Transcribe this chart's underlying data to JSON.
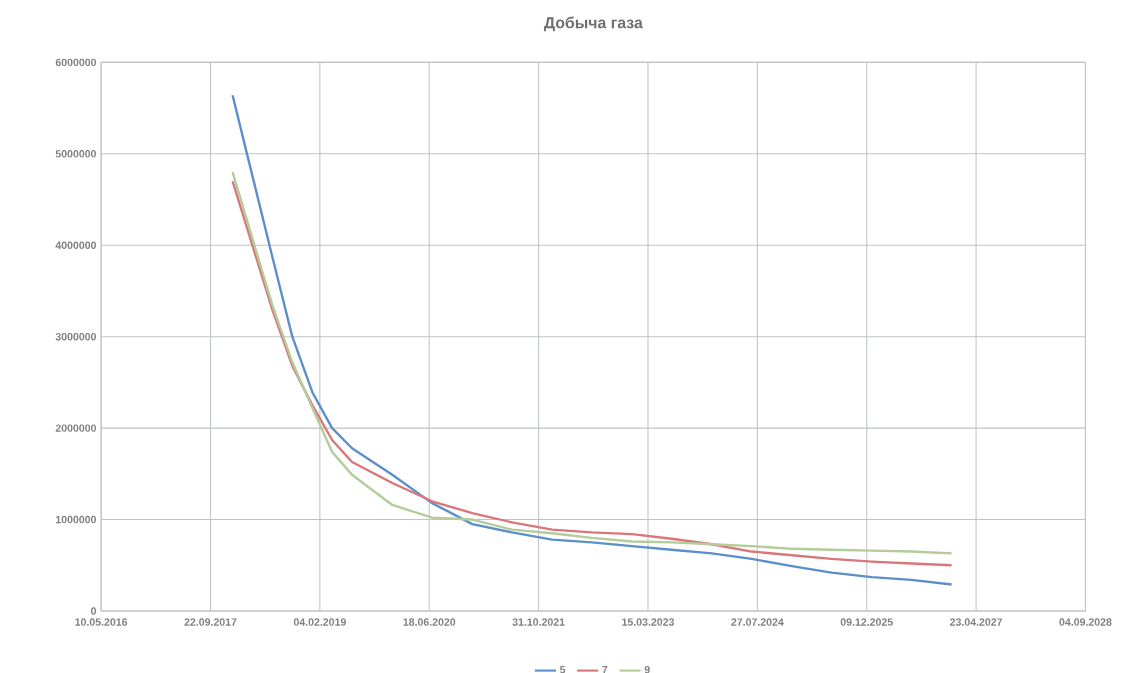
{
  "chart_data": {
    "type": "line",
    "title": "Добыча газа",
    "x": [
      "2018-01-01",
      "2018-07-01",
      "2018-10-01",
      "2019-01-01",
      "2019-04-01",
      "2019-07-01",
      "2020-01-01",
      "2020-07-01",
      "2021-01-01",
      "2021-07-01",
      "2022-01-01",
      "2022-07-01",
      "2023-01-01",
      "2023-07-01",
      "2024-01-01",
      "2024-07-01",
      "2025-01-01",
      "2025-07-01",
      "2026-01-01",
      "2026-07-01",
      "2027-01-01"
    ],
    "series": [
      {
        "name": "5",
        "color": "#5b8fc9",
        "values": [
          5640000,
          3880000,
          3000000,
          2390000,
          2000000,
          1780000,
          1490000,
          1180000,
          950000,
          860000,
          780000,
          750000,
          710000,
          670000,
          630000,
          570000,
          490000,
          420000,
          370000,
          340000,
          290000
        ]
      },
      {
        "name": "7",
        "color": "#d9767a",
        "values": [
          4700000,
          3300000,
          2680000,
          2250000,
          1870000,
          1630000,
          1400000,
          1200000,
          1070000,
          970000,
          890000,
          860000,
          840000,
          790000,
          730000,
          650000,
          610000,
          570000,
          540000,
          520000,
          500000
        ]
      },
      {
        "name": "9",
        "color": "#b3cc99",
        "values": [
          4800000,
          3350000,
          2720000,
          2220000,
          1740000,
          1490000,
          1160000,
          1020000,
          1000000,
          890000,
          850000,
          800000,
          760000,
          750000,
          730000,
          710000,
          680000,
          670000,
          660000,
          650000,
          630000
        ]
      }
    ],
    "xlim": [
      "2016-05-10",
      "2028-09-04"
    ],
    "xticks": [
      {
        "value": "2016-05-10",
        "label": "10.05.2016"
      },
      {
        "value": "2017-09-22",
        "label": "22.09.2017"
      },
      {
        "value": "2019-02-04",
        "label": "04.02.2019"
      },
      {
        "value": "2020-06-18",
        "label": "18.06.2020"
      },
      {
        "value": "2021-10-31",
        "label": "31.10.2021"
      },
      {
        "value": "2023-03-15",
        "label": "15.03.2023"
      },
      {
        "value": "2024-07-27",
        "label": "27.07.2024"
      },
      {
        "value": "2025-12-09",
        "label": "09.12.2025"
      },
      {
        "value": "2027-04-23",
        "label": "23.04.2027"
      },
      {
        "value": "2028-09-04",
        "label": "04.09.2028"
      }
    ],
    "ylim": [
      0,
      6000000
    ],
    "yticks": [
      0,
      1000000,
      2000000,
      3000000,
      4000000,
      5000000,
      6000000
    ],
    "grid": true,
    "legend": "bottom"
  }
}
